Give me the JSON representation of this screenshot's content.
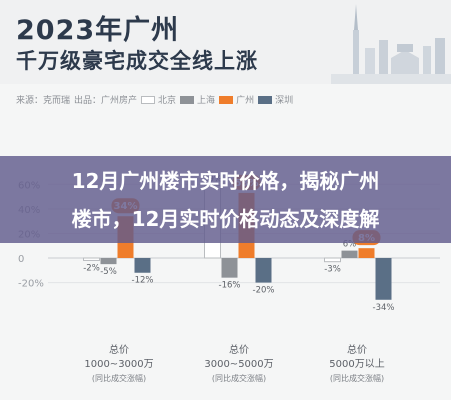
{
  "header": {
    "title_line1": "2023年广州",
    "title_line2": "千万级豪宅成交全线上涨"
  },
  "legend": {
    "source": "来源：克而瑞",
    "maker": "出品：广州房产",
    "series_labels": [
      "北京",
      "上海",
      "广州",
      "深圳"
    ]
  },
  "overlay": {
    "line1": "12月广州楼市实时价格，揭秘广州",
    "line2": "楼市，12月实时价格动态及深度解"
  },
  "groups": [
    {
      "label": "总价",
      "range": "1000~3000万",
      "note": "(同比成交涨幅)"
    },
    {
      "label": "总价",
      "range": "3000~5000万",
      "note": "(同比成交涨幅)"
    },
    {
      "label": "总价",
      "range": "5000万以上",
      "note": "(同比成交涨幅)"
    }
  ],
  "chart_data": {
    "type": "bar",
    "categories": [
      "总价 1000~3000万",
      "总价 3000~5000万",
      "总价 5000万以上"
    ],
    "series": [
      {
        "name": "北京",
        "values": [
          -2,
          59,
          -3
        ],
        "labels": [
          "-2%",
          "59%",
          "-3%"
        ]
      },
      {
        "name": "上海",
        "values": [
          -5,
          -16,
          6
        ],
        "labels": [
          "-5%",
          "-16%",
          "6%"
        ]
      },
      {
        "name": "广州",
        "values": [
          34,
          53,
          8
        ],
        "labels": [
          "34%",
          "53%",
          "8%"
        ]
      },
      {
        "name": "深圳",
        "values": [
          -12,
          -20,
          -34
        ],
        "labels": [
          "-12%",
          "-20%",
          "-34%"
        ]
      }
    ],
    "ylim": [
      -40,
      70
    ],
    "yticks": [
      60,
      40,
      20,
      0,
      -20
    ],
    "ytick_labels": [
      "60%",
      "40%",
      "20%",
      "0",
      "-20%"
    ],
    "colors": {
      "北京": "#ffffff",
      "上海": "#8e9297",
      "广州": "#ef7d2b",
      "深圳": "#5a6f86"
    },
    "grid": true
  }
}
